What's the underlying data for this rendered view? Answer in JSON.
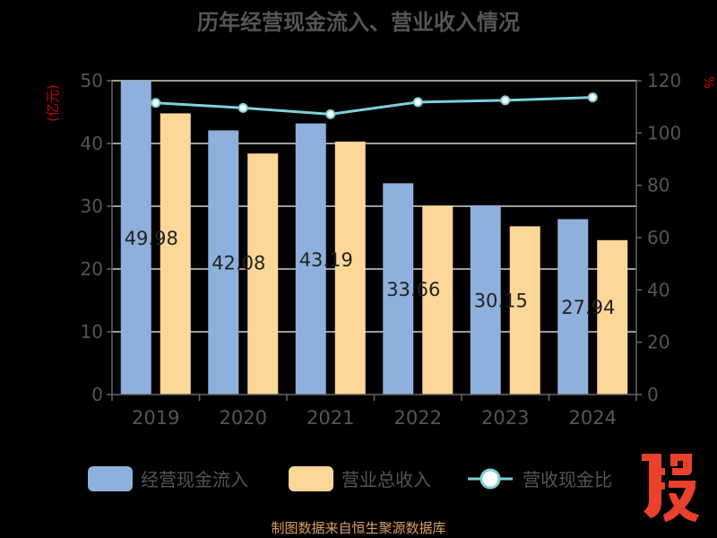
{
  "chart_data": {
    "type": "bar",
    "title": "历年经营现金流入、营业收入情况",
    "categories": [
      "2019",
      "2020",
      "2021",
      "2022",
      "2023",
      "2024"
    ],
    "y_left": {
      "label": "(亿元)",
      "ticks": [
        "0",
        "10",
        "20",
        "30",
        "40",
        "50"
      ],
      "range": [
        0,
        50
      ]
    },
    "y_right": {
      "label": "%",
      "ticks": [
        "0",
        "20",
        "40",
        "60",
        "80",
        "100",
        "120"
      ],
      "range": [
        0,
        120
      ]
    },
    "series": [
      {
        "name": "经营现金流入",
        "kind": "bar",
        "color": "#8eb0dc",
        "values": [
          49.98,
          42.08,
          43.19,
          33.66,
          30.15,
          27.94
        ],
        "labels": [
          "49.98",
          "42.08",
          "43.19",
          "33.66",
          "30.15",
          "27.94"
        ]
      },
      {
        "name": "营业总收入",
        "kind": "bar",
        "color": "#fdd797",
        "values": [
          44.8,
          38.4,
          40.3,
          30.1,
          26.8,
          24.6
        ]
      },
      {
        "name": "营收现金比",
        "kind": "line",
        "axis": "right",
        "color": "#7fd0d6",
        "values": [
          111.5,
          109.6,
          107.2,
          111.8,
          112.5,
          113.6
        ]
      }
    ],
    "grid": true,
    "legend_position": "bottom"
  },
  "source_note": "制图数据来自恒生聚源数据库",
  "colors": {
    "text": "#555555",
    "axis_label": "#cc0000",
    "source": "#d9a066",
    "watermark": "#e8412c"
  }
}
